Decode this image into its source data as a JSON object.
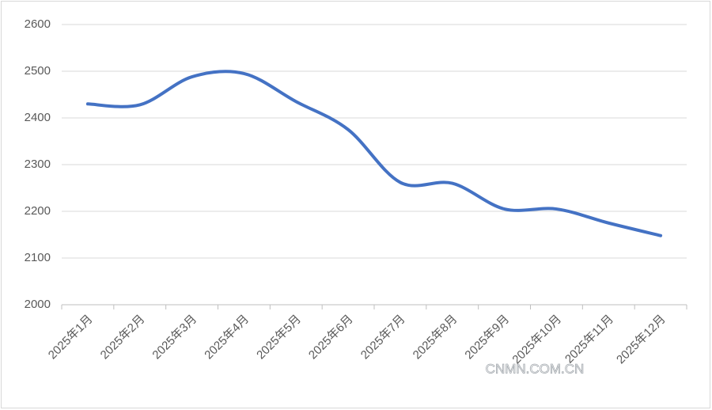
{
  "chart_data": {
    "type": "line",
    "categories": [
      "2025年1月",
      "2025年2月",
      "2025年3月",
      "2025年4月",
      "2025年5月",
      "2025年6月",
      "2025年7月",
      "2025年8月",
      "2025年9月",
      "2025年10月",
      "2025年11月",
      "2025年12月"
    ],
    "values": [
      2430,
      2428,
      2488,
      2495,
      2435,
      2375,
      2262,
      2260,
      2205,
      2205,
      2175,
      2148
    ],
    "color": "#4472c4",
    "ylim": [
      2000,
      2600
    ],
    "yticks": [
      2000,
      2100,
      2200,
      2300,
      2400,
      2500,
      2600
    ],
    "grid": true,
    "smooth": true,
    "watermark": "CNMN.COM.CN"
  }
}
